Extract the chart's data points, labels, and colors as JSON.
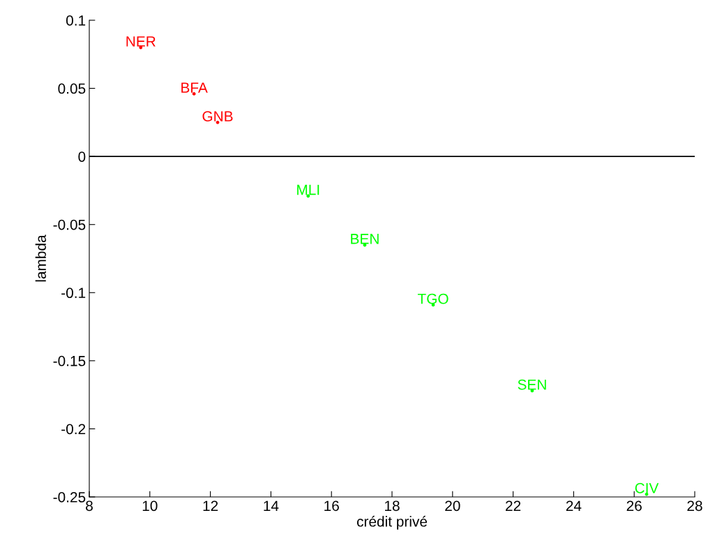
{
  "chart_data": {
    "type": "scatter",
    "xlabel": "crédit privé",
    "ylabel": "lambda",
    "series": [
      {
        "color": "#ff0000",
        "x": [
          9.7,
          11.46,
          12.24
        ],
        "values": [
          0.08,
          0.046,
          0.025
        ],
        "value_labels": [
          "NER",
          "BFA",
          "GNB"
        ]
      },
      {
        "color": "#00ff00",
        "x": [
          15.23,
          17.1,
          19.36,
          22.63,
          26.41
        ],
        "values": [
          -0.029,
          -0.065,
          -0.109,
          -0.172,
          -0.248
        ],
        "value_labels": [
          "MLI",
          "BEN",
          "TGO",
          "SEN",
          "CIV"
        ]
      }
    ],
    "marker": "circle",
    "xlim": [
      8,
      28
    ],
    "xticks": [
      8,
      10,
      12,
      14,
      16,
      18,
      20,
      22,
      24,
      26,
      28
    ],
    "ylim": [
      -0.25,
      0.1
    ],
    "yticks": [
      -0.25,
      -0.2,
      -0.15,
      -0.1,
      -0.05,
      0,
      0.05,
      0.1
    ],
    "ref_lines": [
      {
        "axis": "y",
        "value": 0,
        "color": "#000000"
      }
    ],
    "grid": false,
    "legend": false
  }
}
